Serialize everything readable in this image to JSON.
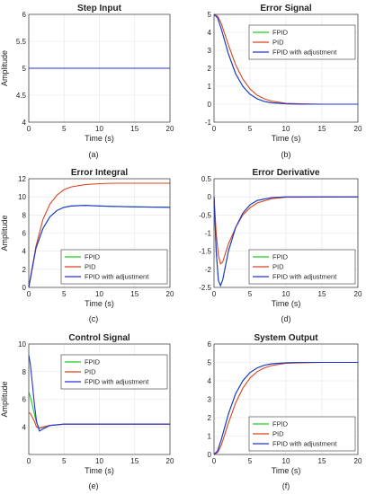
{
  "figure": {
    "captions": [
      "(a)",
      "(b)",
      "(c)",
      "(d)",
      "(e)",
      "(f)"
    ]
  },
  "colors": {
    "FPID": "#22cc22",
    "PID": "#d9441e",
    "FPID with adjustment": "#2233dd"
  },
  "chart_data": [
    {
      "type": "line",
      "title": "Step Input",
      "xlabel": "Time (s)",
      "ylabel": "Amplitude",
      "xlim": [
        0,
        20
      ],
      "ylim": [
        4,
        6
      ],
      "xticks": [
        0,
        5,
        10,
        15,
        20
      ],
      "yticks": [
        4,
        4.5,
        5,
        5.5,
        6
      ],
      "grid": true,
      "legend": null,
      "series": [
        {
          "name": "",
          "color": "#2233dd",
          "x": [
            0,
            20
          ],
          "y": [
            5,
            5
          ]
        }
      ]
    },
    {
      "type": "line",
      "title": "Error Signal",
      "xlabel": "Time (s)",
      "ylabel": "",
      "xlim": [
        0,
        20
      ],
      "ylim": [
        -1,
        5
      ],
      "xticks": [
        0,
        5,
        10,
        15,
        20
      ],
      "yticks": [
        -1,
        0,
        1,
        2,
        3,
        4,
        5
      ],
      "grid": true,
      "legend": "top-right",
      "series": [
        {
          "name": "FPID",
          "x": [
            0,
            0.5,
            1,
            1.5,
            2,
            3,
            4,
            5,
            6,
            7,
            8,
            10,
            12,
            15,
            20
          ],
          "y": [
            5,
            4.8,
            4.2,
            3.5,
            2.8,
            1.7,
            1.0,
            0.55,
            0.3,
            0.15,
            0.08,
            0.02,
            0,
            0,
            0
          ]
        },
        {
          "name": "PID",
          "x": [
            0,
            0.5,
            1,
            1.5,
            2,
            3,
            4,
            5,
            6,
            7,
            8,
            10,
            12,
            15,
            20
          ],
          "y": [
            5,
            4.9,
            4.5,
            3.9,
            3.3,
            2.2,
            1.4,
            0.85,
            0.5,
            0.3,
            0.17,
            0.05,
            0.02,
            0,
            0
          ]
        },
        {
          "name": "FPID with adjustment",
          "x": [
            0,
            0.5,
            1,
            1.5,
            2,
            3,
            4,
            5,
            6,
            7,
            8,
            10,
            12,
            15,
            20
          ],
          "y": [
            5,
            4.8,
            4.2,
            3.5,
            2.8,
            1.7,
            1.0,
            0.55,
            0.3,
            0.15,
            0.08,
            0.02,
            0,
            0,
            0
          ]
        }
      ]
    },
    {
      "type": "line",
      "title": "Error Integral",
      "xlabel": "Time (s)",
      "ylabel": "Amplitude",
      "xlim": [
        0,
        20
      ],
      "ylim": [
        0,
        12
      ],
      "xticks": [
        0,
        5,
        10,
        15,
        20
      ],
      "yticks": [
        0,
        2,
        4,
        6,
        8,
        10,
        12
      ],
      "grid": true,
      "legend": "bottom-right",
      "series": [
        {
          "name": "FPID",
          "x": [
            0,
            1,
            2,
            3,
            4,
            5,
            6,
            8,
            10,
            12,
            15,
            20
          ],
          "y": [
            0,
            4.3,
            6.5,
            7.8,
            8.5,
            8.85,
            9.0,
            9.05,
            9.0,
            8.95,
            8.9,
            8.85
          ]
        },
        {
          "name": "PID",
          "x": [
            0,
            1,
            2,
            3,
            4,
            5,
            6,
            8,
            10,
            12,
            15,
            20
          ],
          "y": [
            0,
            4.5,
            7.5,
            9.2,
            10.2,
            10.8,
            11.1,
            11.35,
            11.45,
            11.5,
            11.5,
            11.5
          ]
        },
        {
          "name": "FPID with adjustment",
          "x": [
            0,
            1,
            2,
            3,
            4,
            5,
            6,
            8,
            10,
            12,
            15,
            20
          ],
          "y": [
            0,
            4.3,
            6.5,
            7.8,
            8.5,
            8.85,
            9.0,
            9.05,
            9.0,
            8.95,
            8.9,
            8.85
          ]
        }
      ]
    },
    {
      "type": "line",
      "title": "Error Derivative",
      "xlabel": "Time (s)",
      "ylabel": "",
      "xlim": [
        0,
        20
      ],
      "ylim": [
        -2.5,
        0.5
      ],
      "xticks": [
        0,
        5,
        10,
        15,
        20
      ],
      "yticks": [
        -2.5,
        -2,
        -1.5,
        -1,
        -0.5,
        0,
        0.5
      ],
      "grid": true,
      "legend": "bottom-right",
      "series": [
        {
          "name": "FPID",
          "x": [
            0,
            0.3,
            0.6,
            0.9,
            1.2,
            1.6,
            2,
            3,
            4,
            5,
            6,
            8,
            10,
            20
          ],
          "y": [
            0,
            -1.5,
            -2.3,
            -2.45,
            -2.3,
            -1.9,
            -1.5,
            -0.85,
            -0.45,
            -0.22,
            -0.1,
            -0.02,
            0,
            0
          ]
        },
        {
          "name": "PID",
          "x": [
            0,
            0.3,
            0.6,
            0.9,
            1.2,
            1.6,
            2,
            3,
            4,
            5,
            6,
            8,
            10,
            20
          ],
          "y": [
            0,
            -1.0,
            -1.6,
            -1.85,
            -1.8,
            -1.55,
            -1.3,
            -0.85,
            -0.5,
            -0.3,
            -0.17,
            -0.05,
            -0.01,
            0
          ]
        },
        {
          "name": "FPID with adjustment",
          "x": [
            0,
            0.3,
            0.6,
            0.9,
            1.2,
            1.6,
            2,
            3,
            4,
            5,
            6,
            8,
            10,
            20
          ],
          "y": [
            0,
            -1.5,
            -2.3,
            -2.45,
            -2.3,
            -1.9,
            -1.5,
            -0.85,
            -0.45,
            -0.22,
            -0.1,
            -0.02,
            0,
            0
          ]
        }
      ]
    },
    {
      "type": "line",
      "title": "Control Signal",
      "xlabel": "Time (s)",
      "ylabel": "Amplitude",
      "xlim": [
        0,
        20
      ],
      "ylim": [
        2,
        10
      ],
      "xticks": [
        0,
        5,
        10,
        15,
        20
      ],
      "yticks": [
        4,
        6,
        8,
        10
      ],
      "grid": true,
      "legend": "top-right",
      "series": [
        {
          "name": "FPID",
          "x": [
            0,
            0.2,
            0.5,
            0.8,
            1.1,
            1.5,
            2,
            3,
            4,
            5,
            7,
            10,
            15,
            20
          ],
          "y": [
            6.5,
            6.2,
            5.6,
            4.9,
            4.3,
            3.9,
            3.95,
            4.1,
            4.15,
            4.2,
            4.2,
            4.2,
            4.2,
            4.2
          ]
        },
        {
          "name": "PID",
          "x": [
            0,
            0.2,
            0.5,
            0.8,
            1.1,
            1.5,
            2,
            3,
            4,
            5,
            7,
            10,
            15,
            20
          ],
          "y": [
            5.0,
            5.0,
            4.7,
            4.4,
            4.0,
            3.9,
            4.0,
            4.1,
            4.15,
            4.2,
            4.2,
            4.2,
            4.2,
            4.2
          ]
        },
        {
          "name": "FPID with adjustment",
          "x": [
            0,
            0.2,
            0.5,
            0.8,
            1.1,
            1.5,
            2,
            3,
            4,
            5,
            7,
            10,
            15,
            20
          ],
          "y": [
            9.2,
            8.6,
            7.2,
            5.6,
            4.4,
            3.7,
            3.85,
            4.1,
            4.15,
            4.2,
            4.2,
            4.2,
            4.2,
            4.2
          ]
        }
      ]
    },
    {
      "type": "line",
      "title": "System Output",
      "xlabel": "Time (s)",
      "ylabel": "",
      "xlim": [
        0,
        20
      ],
      "ylim": [
        0,
        6
      ],
      "xticks": [
        0,
        5,
        10,
        15,
        20
      ],
      "yticks": [
        0,
        1,
        2,
        3,
        4,
        5,
        6
      ],
      "grid": true,
      "legend": "bottom-right",
      "series": [
        {
          "name": "FPID",
          "x": [
            0,
            0.5,
            1,
            1.5,
            2,
            3,
            4,
            5,
            6,
            7,
            8,
            10,
            12,
            15,
            20
          ],
          "y": [
            0,
            0.2,
            0.8,
            1.5,
            2.2,
            3.3,
            4.0,
            4.45,
            4.7,
            4.85,
            4.92,
            4.98,
            5,
            5,
            5
          ]
        },
        {
          "name": "PID",
          "x": [
            0,
            0.5,
            1,
            1.5,
            2,
            3,
            4,
            5,
            6,
            7,
            8,
            10,
            12,
            15,
            20
          ],
          "y": [
            0,
            0.1,
            0.5,
            1.1,
            1.7,
            2.8,
            3.6,
            4.15,
            4.5,
            4.7,
            4.83,
            4.95,
            4.98,
            5,
            5
          ]
        },
        {
          "name": "FPID with adjustment",
          "x": [
            0,
            0.5,
            1,
            1.5,
            2,
            3,
            4,
            5,
            6,
            7,
            8,
            10,
            12,
            15,
            20
          ],
          "y": [
            0,
            0.2,
            0.8,
            1.5,
            2.2,
            3.3,
            4.0,
            4.45,
            4.7,
            4.85,
            4.92,
            4.98,
            5,
            5,
            5
          ]
        }
      ]
    }
  ]
}
